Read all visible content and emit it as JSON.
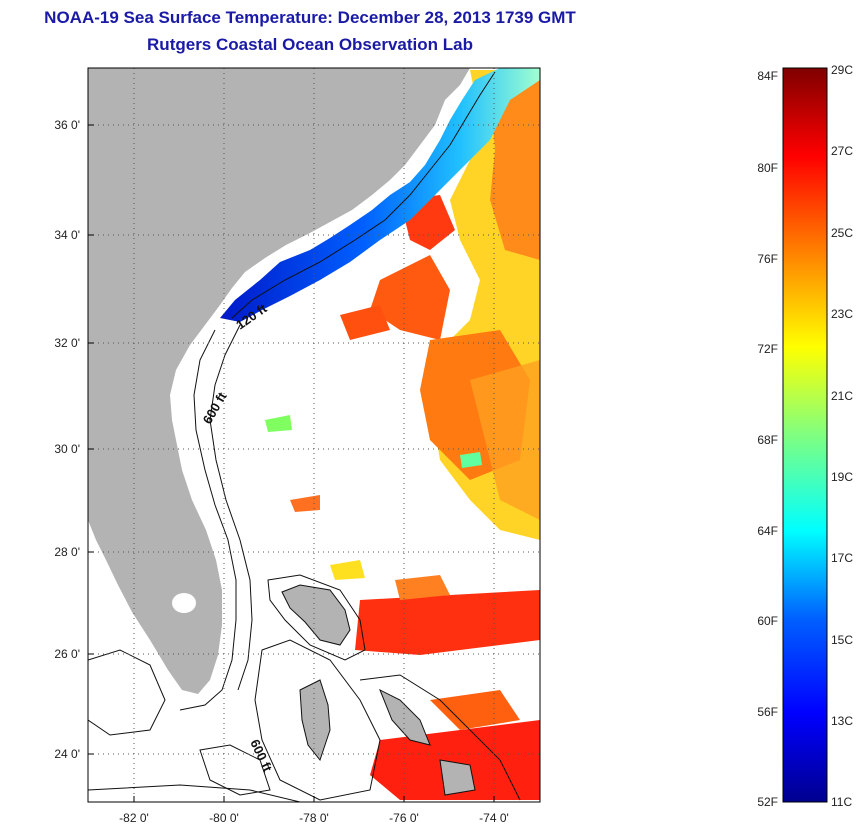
{
  "title": "NOAA-19 Sea Surface Temperature:  December 28, 2013 1739 GMT",
  "subtitle": "Rutgers Coastal Ocean Observation Lab",
  "map": {
    "lat_ticks": [
      "36 0'",
      "34 0'",
      "32 0'",
      "30 0'",
      "28 0'",
      "26 0'",
      "24 0'"
    ],
    "lon_ticks": [
      "-82 0'",
      "-80 0'",
      "-78 0'",
      "-76 0'",
      "-74 0'"
    ],
    "contour_labels": [
      "120 ft",
      "600 ft",
      "600 ft"
    ],
    "land_color": "#b3b3b3",
    "gridlines": "dotted"
  },
  "colorbar": {
    "fahrenheit_labels": [
      "84F",
      "80F",
      "76F",
      "72F",
      "68F",
      "64F",
      "60F",
      "56F",
      "52F"
    ],
    "celsius_labels": [
      "29C",
      "27C",
      "25C",
      "23C",
      "21C",
      "19C",
      "17C",
      "15C",
      "13C",
      "11C"
    ],
    "colormap": "jet"
  }
}
